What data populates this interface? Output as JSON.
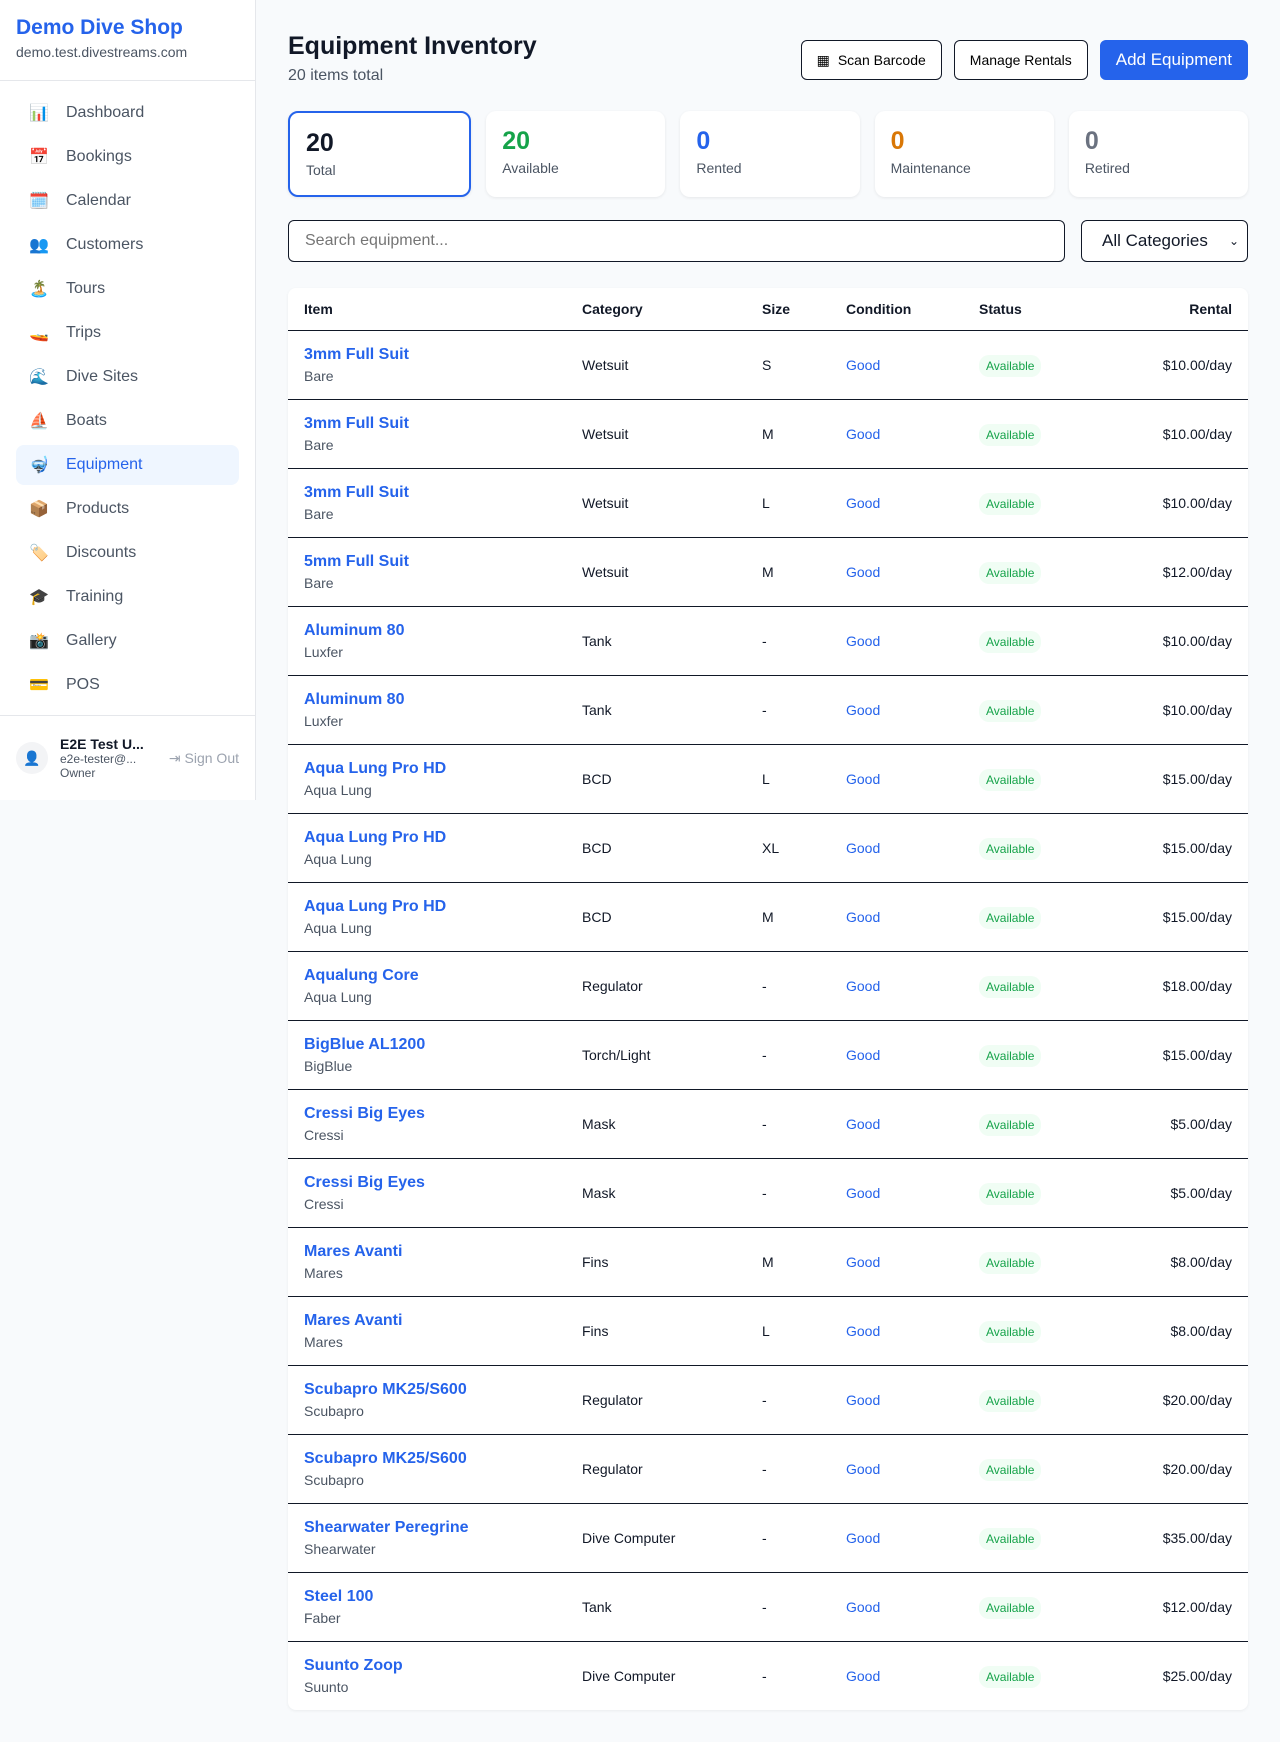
{
  "sidebar": {
    "brand": "Demo Dive Shop",
    "domain": "demo.test.divestreams.com",
    "items": [
      {
        "icon": "📊",
        "label": "Dashboard"
      },
      {
        "icon": "📅",
        "label": "Bookings"
      },
      {
        "icon": "🗓️",
        "label": "Calendar"
      },
      {
        "icon": "👥",
        "label": "Customers"
      },
      {
        "icon": "🏝️",
        "label": "Tours"
      },
      {
        "icon": "🚤",
        "label": "Trips"
      },
      {
        "icon": "🌊",
        "label": "Dive Sites"
      },
      {
        "icon": "⛵",
        "label": "Boats"
      },
      {
        "icon": "🤿",
        "label": "Equipment"
      },
      {
        "icon": "📦",
        "label": "Products"
      },
      {
        "icon": "🏷️",
        "label": "Discounts"
      },
      {
        "icon": "🎓",
        "label": "Training"
      },
      {
        "icon": "📸",
        "label": "Gallery"
      },
      {
        "icon": "💳",
        "label": "POS"
      }
    ],
    "active": "Equipment",
    "user": {
      "name": "E2E Test U...",
      "email": "e2e-tester@...",
      "role": "Owner",
      "sign_out": "Sign Out"
    }
  },
  "header": {
    "title": "Equipment Inventory",
    "subtitle": "20 items total",
    "scan": "Scan Barcode",
    "manage": "Manage Rentals",
    "add": "Add Equipment"
  },
  "stats": [
    {
      "value": "20",
      "label": "Total",
      "color": "#111827"
    },
    {
      "value": "20",
      "label": "Available",
      "color": "#16a34a"
    },
    {
      "value": "0",
      "label": "Rented",
      "color": "#2563eb"
    },
    {
      "value": "0",
      "label": "Maintenance",
      "color": "#d97706"
    },
    {
      "value": "0",
      "label": "Retired",
      "color": "#6b7280"
    }
  ],
  "filters": {
    "search_placeholder": "Search equipment...",
    "category": "All Categories"
  },
  "table": {
    "columns": [
      "Item",
      "Category",
      "Size",
      "Condition",
      "Status",
      "Rental"
    ],
    "rows": [
      [
        "3mm Full Suit",
        "Bare",
        "Wetsuit",
        "S",
        "Good",
        "Available",
        "$10.00/day"
      ],
      [
        "3mm Full Suit",
        "Bare",
        "Wetsuit",
        "M",
        "Good",
        "Available",
        "$10.00/day"
      ],
      [
        "3mm Full Suit",
        "Bare",
        "Wetsuit",
        "L",
        "Good",
        "Available",
        "$10.00/day"
      ],
      [
        "5mm Full Suit",
        "Bare",
        "Wetsuit",
        "M",
        "Good",
        "Available",
        "$12.00/day"
      ],
      [
        "Aluminum 80",
        "Luxfer",
        "Tank",
        "-",
        "Good",
        "Available",
        "$10.00/day"
      ],
      [
        "Aluminum 80",
        "Luxfer",
        "Tank",
        "-",
        "Good",
        "Available",
        "$10.00/day"
      ],
      [
        "Aqua Lung Pro HD",
        "Aqua Lung",
        "BCD",
        "L",
        "Good",
        "Available",
        "$15.00/day"
      ],
      [
        "Aqua Lung Pro HD",
        "Aqua Lung",
        "BCD",
        "XL",
        "Good",
        "Available",
        "$15.00/day"
      ],
      [
        "Aqua Lung Pro HD",
        "Aqua Lung",
        "BCD",
        "M",
        "Good",
        "Available",
        "$15.00/day"
      ],
      [
        "Aqualung Core",
        "Aqua Lung",
        "Regulator",
        "-",
        "Good",
        "Available",
        "$18.00/day"
      ],
      [
        "BigBlue AL1200",
        "BigBlue",
        "Torch/Light",
        "-",
        "Good",
        "Available",
        "$15.00/day"
      ],
      [
        "Cressi Big Eyes",
        "Cressi",
        "Mask",
        "-",
        "Good",
        "Available",
        "$5.00/day"
      ],
      [
        "Cressi Big Eyes",
        "Cressi",
        "Mask",
        "-",
        "Good",
        "Available",
        "$5.00/day"
      ],
      [
        "Mares Avanti",
        "Mares",
        "Fins",
        "M",
        "Good",
        "Available",
        "$8.00/day"
      ],
      [
        "Mares Avanti",
        "Mares",
        "Fins",
        "L",
        "Good",
        "Available",
        "$8.00/day"
      ],
      [
        "Scubapro MK25/S600",
        "Scubapro",
        "Regulator",
        "-",
        "Good",
        "Available",
        "$20.00/day"
      ],
      [
        "Scubapro MK25/S600",
        "Scubapro",
        "Regulator",
        "-",
        "Good",
        "Available",
        "$20.00/day"
      ],
      [
        "Shearwater Peregrine",
        "Shearwater",
        "Dive Computer",
        "-",
        "Good",
        "Available",
        "$35.00/day"
      ],
      [
        "Steel 100",
        "Faber",
        "Tank",
        "-",
        "Good",
        "Available",
        "$12.00/day"
      ],
      [
        "Suunto Zoop",
        "Suunto",
        "Dive Computer",
        "-",
        "Good",
        "Available",
        "$25.00/day"
      ]
    ]
  }
}
